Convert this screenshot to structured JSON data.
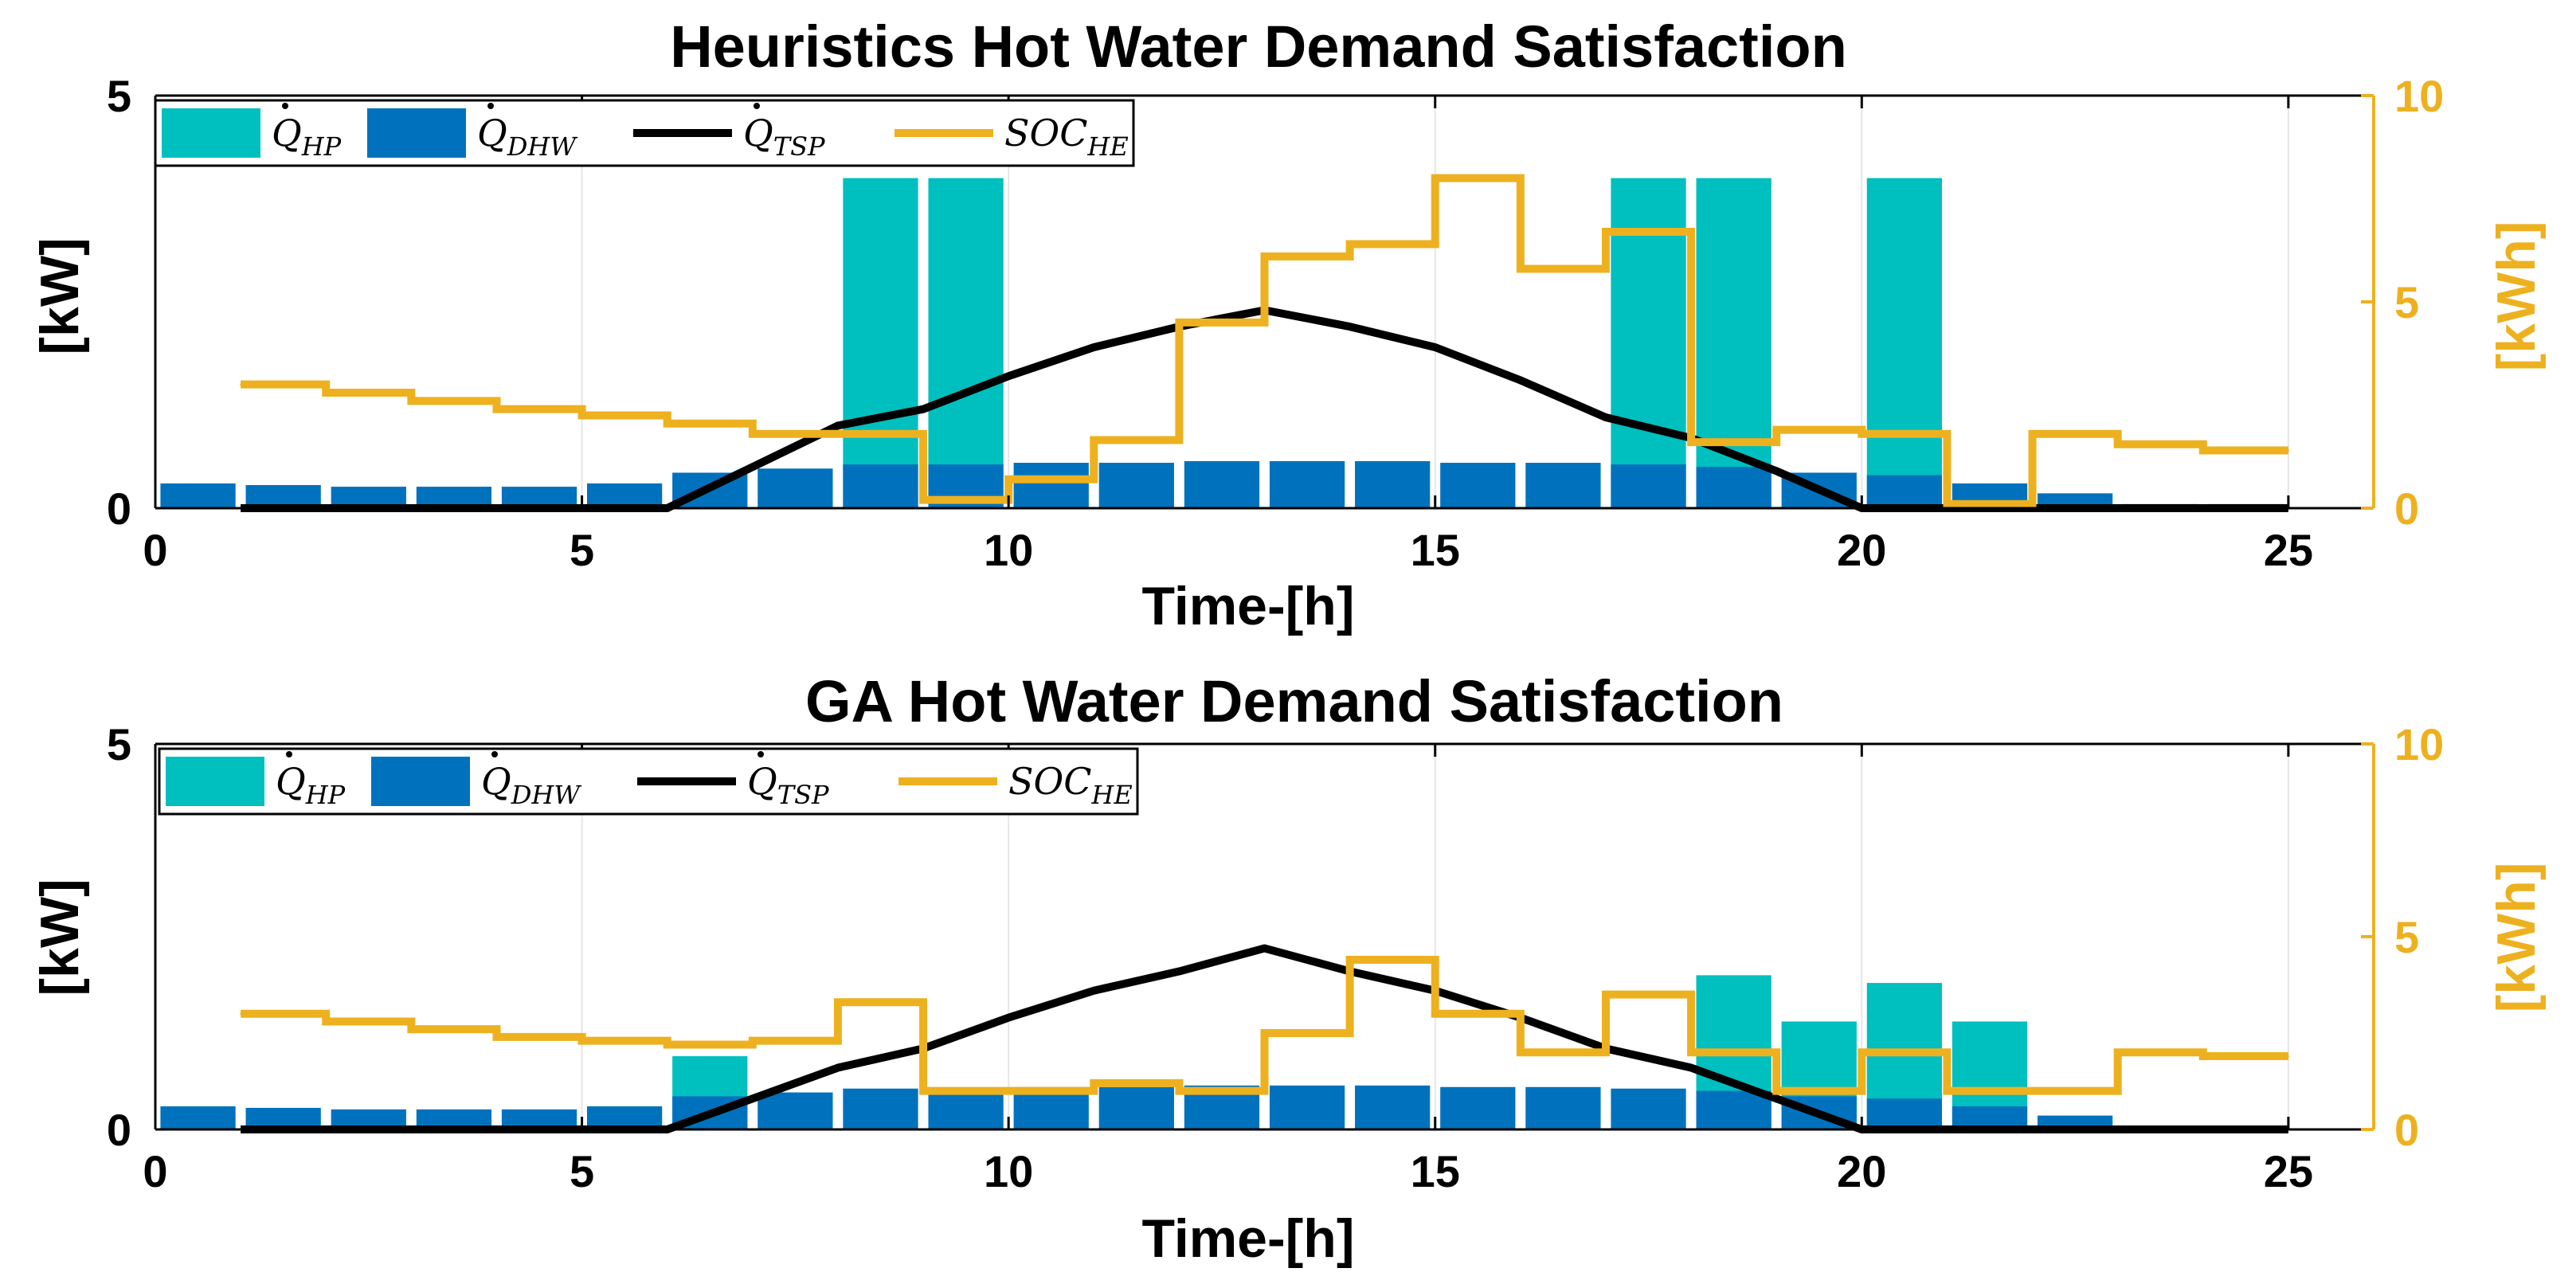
{
  "chart_data": [
    {
      "type": "bar+line",
      "title": "Heuristics Hot Water Demand Satisfaction",
      "xlabel": "Time-[h]",
      "ylabel": "[kW]",
      "ylabel_right": "[kWh]",
      "xlim": [
        0,
        26
      ],
      "xticks": [
        "0",
        "5",
        "10",
        "15",
        "20",
        "25"
      ],
      "ylim": [
        0,
        5
      ],
      "yticks": [
        "0",
        "5"
      ],
      "ylim_right": [
        0,
        10
      ],
      "yticks_right": [
        "0",
        "5",
        "10"
      ],
      "grid": true,
      "legend_position": "top-left",
      "legend": [
        {
          "sym": "Q",
          "sub": "HP",
          "kind": "bar",
          "color": "#00BFBF"
        },
        {
          "sym": "Q",
          "sub": "DHW",
          "kind": "bar",
          "color": "#0072BD"
        },
        {
          "sym": "Q",
          "sub": "TSP",
          "kind": "line",
          "color": "#000000"
        },
        {
          "sym": "SOC",
          "sub": "HE",
          "kind": "line",
          "color": "#EDB120"
        }
      ],
      "x": [
        1,
        2,
        3,
        4,
        5,
        6,
        7,
        8,
        9,
        10,
        11,
        12,
        13,
        14,
        15,
        16,
        17,
        18,
        19,
        20,
        21,
        22,
        23,
        24,
        25
      ],
      "series": [
        {
          "name": "Q_HP",
          "type": "bar",
          "color": "#00BFBF",
          "values": [
            0,
            0,
            0,
            0,
            0,
            0,
            0,
            0,
            4,
            4,
            0,
            0,
            0,
            0,
            0,
            0,
            0,
            4,
            4,
            0,
            4,
            0,
            0,
            0,
            0
          ]
        },
        {
          "name": "Q_DHW",
          "type": "bar",
          "color": "#0072BD",
          "values": [
            0.3,
            0.28,
            0.26,
            0.26,
            0.26,
            0.3,
            0.43,
            0.48,
            0.53,
            0.53,
            0.55,
            0.55,
            0.57,
            0.57,
            0.57,
            0.55,
            0.55,
            0.53,
            0.5,
            0.43,
            0.4,
            0.3,
            0.18,
            0.05,
            0.05
          ]
        },
        {
          "name": "Q_TSP",
          "type": "line",
          "color": "#000000",
          "values": [
            0,
            0,
            0,
            0,
            0,
            0,
            0.5,
            1.0,
            1.2,
            1.6,
            1.95,
            2.2,
            2.4,
            2.2,
            1.95,
            1.55,
            1.1,
            0.85,
            0.45,
            0,
            0,
            0,
            0,
            0,
            0
          ]
        },
        {
          "name": "SOC_HE",
          "type": "stairs",
          "color": "#EDB120",
          "values": [
            3.0,
            2.8,
            2.6,
            2.4,
            2.25,
            2.05,
            1.8,
            1.8,
            0.2,
            0.7,
            1.65,
            4.5,
            6.1,
            6.4,
            8.0,
            5.8,
            6.7,
            1.6,
            1.9,
            1.8,
            0.1,
            1.8,
            1.55,
            1.4,
            1.4
          ]
        }
      ]
    },
    {
      "type": "bar+line",
      "title": "GA Hot Water Demand Satisfaction",
      "xlabel": "Time-[h]",
      "ylabel": "[kW]",
      "ylabel_right": "[kWh]",
      "xlim": [
        0,
        26
      ],
      "xticks": [
        "0",
        "5",
        "10",
        "15",
        "20",
        "25"
      ],
      "ylim": [
        0,
        5
      ],
      "yticks": [
        "0",
        "5"
      ],
      "ylim_right": [
        0,
        10
      ],
      "yticks_right": [
        "0",
        "5",
        "10"
      ],
      "grid": true,
      "legend_position": "top-left",
      "legend": [
        {
          "sym": "Q",
          "sub": "HP",
          "kind": "bar",
          "color": "#00BFBF"
        },
        {
          "sym": "Q",
          "sub": "DHW",
          "kind": "bar",
          "color": "#0072BD"
        },
        {
          "sym": "Q",
          "sub": "TSP",
          "kind": "line",
          "color": "#000000"
        },
        {
          "sym": "SOC",
          "sub": "HE",
          "kind": "line",
          "color": "#EDB120"
        }
      ],
      "x": [
        1,
        2,
        3,
        4,
        5,
        6,
        7,
        8,
        9,
        10,
        11,
        12,
        13,
        14,
        15,
        16,
        17,
        18,
        19,
        20,
        21,
        22,
        23,
        24,
        25
      ],
      "series": [
        {
          "name": "Q_HP",
          "type": "bar",
          "color": "#00BFBF",
          "values": [
            0,
            0,
            0,
            0,
            0,
            0,
            0.95,
            0,
            0,
            0,
            0,
            0,
            0,
            0,
            0,
            0,
            0,
            0,
            2.0,
            1.4,
            1.9,
            1.4,
            0,
            0,
            0
          ]
        },
        {
          "name": "Q_DHW",
          "type": "bar",
          "color": "#0072BD",
          "values": [
            0.3,
            0.28,
            0.26,
            0.26,
            0.26,
            0.3,
            0.43,
            0.48,
            0.53,
            0.53,
            0.55,
            0.55,
            0.57,
            0.57,
            0.57,
            0.55,
            0.55,
            0.53,
            0.5,
            0.43,
            0.4,
            0.3,
            0.18,
            0.05,
            0.05
          ]
        },
        {
          "name": "Q_TSP",
          "type": "line",
          "color": "#000000",
          "values": [
            0,
            0,
            0,
            0,
            0,
            0,
            0.4,
            0.8,
            1.05,
            1.45,
            1.8,
            2.05,
            2.35,
            2.05,
            1.8,
            1.45,
            1.05,
            0.8,
            0.4,
            0,
            0,
            0,
            0,
            0,
            0
          ]
        },
        {
          "name": "SOC_HE",
          "type": "stairs",
          "color": "#EDB120",
          "values": [
            3.0,
            2.8,
            2.6,
            2.4,
            2.3,
            2.2,
            2.3,
            3.3,
            1.0,
            1.0,
            1.2,
            1.0,
            2.5,
            4.4,
            3.0,
            2.0,
            3.5,
            2.0,
            1.0,
            2.0,
            1.0,
            1.0,
            2.0,
            1.9,
            1.9
          ]
        }
      ]
    }
  ]
}
